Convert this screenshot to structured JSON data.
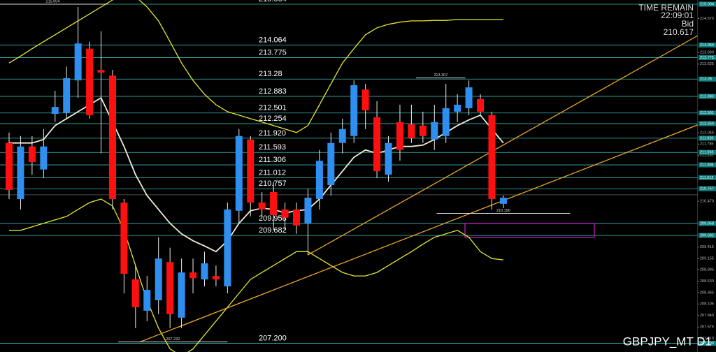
{
  "chart_data": {
    "type": "candlestick",
    "title": "GBPJPY_MT D1",
    "time_label": "TIME REMAIN",
    "time": "22:09:01",
    "bid_label": "Bid",
    "bid": 210.617,
    "ylim": [
      207.0,
      215.1
    ],
    "yticks": [
      214.675,
      {
        "value": 213.89,
        "label": "213.890"
      },
      213.625,
      212.045,
      211.785,
      {
        "value": 211.52,
        "label": "211.520"
      },
      {
        "value": 210.47,
        "label": "210.470"
      },
      209.415,
      209.155,
      208.895,
      {
        "value": 208.63,
        "label": "208.630"
      },
      208.365,
      208.105,
      {
        "value": 207.84,
        "label": "207.840"
      },
      207.575,
      {
        "value": 207.31,
        "label": "207.310"
      }
    ],
    "levels": [
      215.004,
      214.064,
      213.775,
      213.28,
      212.883,
      212.501,
      212.254,
      {
        "value": 211.92,
        "label": "211.920"
      },
      211.593,
      211.306,
      211.012,
      210.757,
      209.958,
      209.682,
      {
        "value": 207.2,
        "label": "207.200"
      }
    ],
    "level_color": "#3fb6b6",
    "up_color": "#2e8ff0",
    "down_color": "#ff1010",
    "candles": [
      {
        "o": 211.81,
        "h": 212.05,
        "l": 210.52,
        "c": 210.73
      },
      {
        "o": 210.52,
        "h": 211.97,
        "l": 210.28,
        "c": 211.73
      },
      {
        "o": 211.73,
        "h": 211.97,
        "l": 211.08,
        "c": 211.37
      },
      {
        "o": 211.2,
        "h": 212.13,
        "l": 211.0,
        "c": 211.73
      },
      {
        "o": 212.48,
        "h": 213.01,
        "l": 212.29,
        "c": 212.64
      },
      {
        "o": 212.5,
        "h": 213.57,
        "l": 212.37,
        "c": 213.3
      },
      {
        "o": 213.25,
        "h": 214.94,
        "l": 212.85,
        "c": 214.1
      },
      {
        "o": 213.98,
        "h": 214.14,
        "l": 212.37,
        "c": 212.45
      },
      {
        "o": 213.49,
        "h": 214.38,
        "l": 211.57,
        "c": 213.43
      },
      {
        "o": 213.36,
        "h": 213.49,
        "l": 210.28,
        "c": 210.52
      },
      {
        "o": 210.44,
        "h": 210.52,
        "l": 208.35,
        "c": 208.8
      },
      {
        "o": 208.67,
        "h": 208.99,
        "l": 207.55,
        "c": 208.03
      },
      {
        "o": 207.95,
        "h": 208.75,
        "l": 207.71,
        "c": 208.43
      },
      {
        "o": 208.19,
        "h": 209.64,
        "l": 207.87,
        "c": 209.15
      },
      {
        "o": 209.07,
        "h": 209.4,
        "l": 207.55,
        "c": 207.87
      },
      {
        "o": 207.79,
        "h": 209.15,
        "l": 207.55,
        "c": 208.83
      },
      {
        "o": 208.83,
        "h": 209.15,
        "l": 208.35,
        "c": 208.7
      },
      {
        "o": 208.67,
        "h": 209.31,
        "l": 208.51,
        "c": 209.04
      },
      {
        "o": 208.75,
        "h": 208.99,
        "l": 208.51,
        "c": 208.67
      },
      {
        "o": 208.51,
        "h": 210.44,
        "l": 208.35,
        "c": 210.28
      },
      {
        "o": 210.25,
        "h": 212.13,
        "l": 209.96,
        "c": 211.97
      },
      {
        "o": 211.89,
        "h": 211.97,
        "l": 210.12,
        "c": 210.44
      },
      {
        "o": 210.44,
        "h": 210.68,
        "l": 210.12,
        "c": 210.28
      },
      {
        "o": 210.68,
        "h": 210.92,
        "l": 209.8,
        "c": 210.15
      },
      {
        "o": 210.28,
        "h": 210.44,
        "l": 209.8,
        "c": 210.09
      },
      {
        "o": 210.28,
        "h": 210.44,
        "l": 209.72,
        "c": 209.91
      },
      {
        "o": 209.96,
        "h": 210.76,
        "l": 209.23,
        "c": 210.55
      },
      {
        "o": 210.52,
        "h": 211.65,
        "l": 210.28,
        "c": 211.4
      },
      {
        "o": 210.84,
        "h": 212.05,
        "l": 210.6,
        "c": 211.81
      },
      {
        "o": 211.81,
        "h": 212.37,
        "l": 211.57,
        "c": 212.13
      },
      {
        "o": 211.97,
        "h": 213.25,
        "l": 211.81,
        "c": 213.14
      },
      {
        "o": 213.04,
        "h": 213.17,
        "l": 212.13,
        "c": 212.56
      },
      {
        "o": 212.4,
        "h": 212.77,
        "l": 211.0,
        "c": 211.16
      },
      {
        "o": 211.08,
        "h": 211.97,
        "l": 210.92,
        "c": 211.81
      },
      {
        "o": 212.29,
        "h": 212.69,
        "l": 211.4,
        "c": 211.65
      },
      {
        "o": 212.24,
        "h": 212.69,
        "l": 211.81,
        "c": 211.92
      },
      {
        "o": 212.21,
        "h": 212.53,
        "l": 211.81,
        "c": 211.97
      },
      {
        "o": 211.89,
        "h": 212.69,
        "l": 211.65,
        "c": 212.29
      },
      {
        "o": 211.97,
        "h": 213.17,
        "l": 211.81,
        "c": 212.61
      },
      {
        "o": 212.53,
        "h": 212.93,
        "l": 212.29,
        "c": 212.69
      },
      {
        "o": 212.61,
        "h": 213.25,
        "l": 212.45,
        "c": 213.09
      },
      {
        "o": 212.82,
        "h": 212.93,
        "l": 212.45,
        "c": 212.53
      },
      {
        "o": 212.45,
        "h": 212.53,
        "l": 210.28,
        "c": 210.52
      },
      {
        "o": 210.41,
        "h": 210.6,
        "l": 210.31,
        "c": 210.55
      }
    ],
    "series": [
      {
        "color": "#f4ecd8",
        "values": [
          211.81,
          211.81,
          211.81,
          211.89,
          212.21,
          212.37,
          212.53,
          212.69,
          212.85,
          212.29,
          211.73,
          211.08,
          210.6,
          210.28,
          209.96,
          209.72,
          209.56,
          209.44,
          209.31,
          209.56,
          209.96,
          210.25,
          210.31,
          210.28,
          210.2,
          210.25,
          210.28,
          210.52,
          210.84,
          211.16,
          211.48,
          211.65,
          211.57,
          211.65,
          211.73,
          211.73,
          211.76,
          211.89,
          212.05,
          212.21,
          212.34,
          212.45,
          212.13,
          211.81
        ]
      },
      {
        "color": "#e6e62e",
        "values": [
          213.65,
          213.81,
          213.98,
          214.14,
          214.3,
          214.46,
          214.62,
          214.78,
          214.94,
          215.1,
          215.26,
          215.18,
          214.94,
          214.62,
          214.14,
          213.65,
          213.25,
          212.93,
          212.69,
          212.53,
          212.45,
          212.37,
          212.29,
          212.21,
          212.13,
          212.05,
          212.21,
          212.69,
          213.17,
          213.65,
          213.98,
          214.3,
          214.46,
          214.54,
          214.59,
          214.62,
          214.62,
          214.63,
          214.63,
          214.65,
          214.65,
          214.65,
          214.65,
          214.65
        ]
      },
      {
        "color": "#e6e62e",
        "values": [
          209.8,
          209.8,
          209.88,
          209.96,
          210.04,
          210.12,
          210.28,
          210.44,
          210.52,
          210.36,
          209.8,
          208.99,
          208.19,
          207.55,
          207.07,
          206.9,
          207.07,
          207.39,
          207.71,
          208.03,
          208.35,
          208.67,
          208.83,
          208.99,
          209.15,
          209.31,
          209.31,
          209.15,
          208.99,
          208.83,
          208.75,
          208.75,
          208.83,
          208.99,
          209.15,
          209.31,
          209.48,
          209.64,
          209.72,
          209.8,
          209.64,
          209.31,
          209.15,
          209.12
        ]
      }
    ],
    "trendlines": [
      {
        "color": "#e8a62a",
        "from": [
          11.37,
          207.23
        ],
        "to": [
          60.04,
          212.24
        ]
      },
      {
        "color": "#e8a62a",
        "from": [
          25.97,
          209.23
        ],
        "to": [
          60.04,
          214.3
        ]
      }
    ],
    "zone": {
      "color": "#d020d0",
      "from": 39.66,
      "to": 50.91,
      "top": 209.96,
      "bottom": 209.64
    },
    "markers": [
      {
        "value": 215.004,
        "from": -1,
        "to": 8.6
      },
      {
        "value": 213.307,
        "from": 35.4,
        "to": 39.7
      },
      {
        "value": 210.19,
        "label": "210.190",
        "from": 37.2,
        "to": 48.8
      },
      {
        "value": 207.232,
        "from": 9.5,
        "to": 19.0
      }
    ]
  }
}
